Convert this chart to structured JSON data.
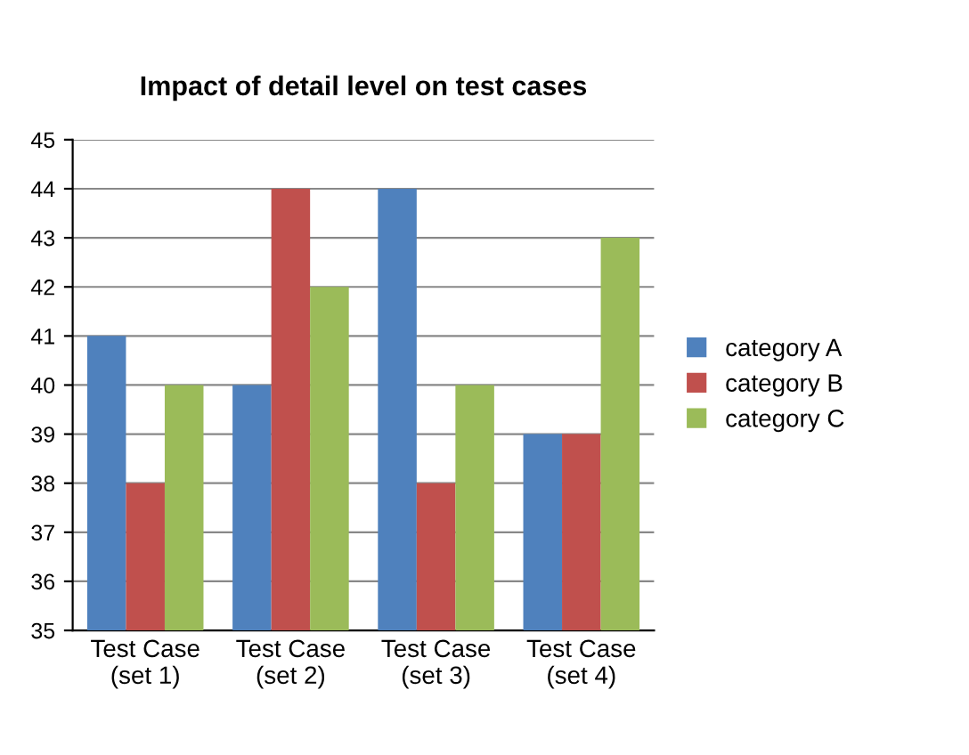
{
  "chart_data": {
    "type": "bar",
    "title": "Impact of detail level on test cases",
    "categories": [
      "Test Case\n(set 1)",
      "Test Case\n(set 2)",
      "Test Case\n(set 3)",
      "Test Case\n(set 4)"
    ],
    "series": [
      {
        "name": "category A",
        "color": "#4f81bd",
        "values": [
          41,
          40,
          44,
          39
        ]
      },
      {
        "name": "category B",
        "color": "#c0504d",
        "values": [
          38,
          44,
          38,
          39
        ]
      },
      {
        "name": "category C",
        "color": "#9bbb59",
        "values": [
          40,
          42,
          40,
          43
        ]
      }
    ],
    "ylim": [
      35,
      45
    ],
    "yticks": [
      35,
      36,
      37,
      38,
      39,
      40,
      41,
      42,
      43,
      44,
      45
    ],
    "grid": "y",
    "legend": "right"
  }
}
